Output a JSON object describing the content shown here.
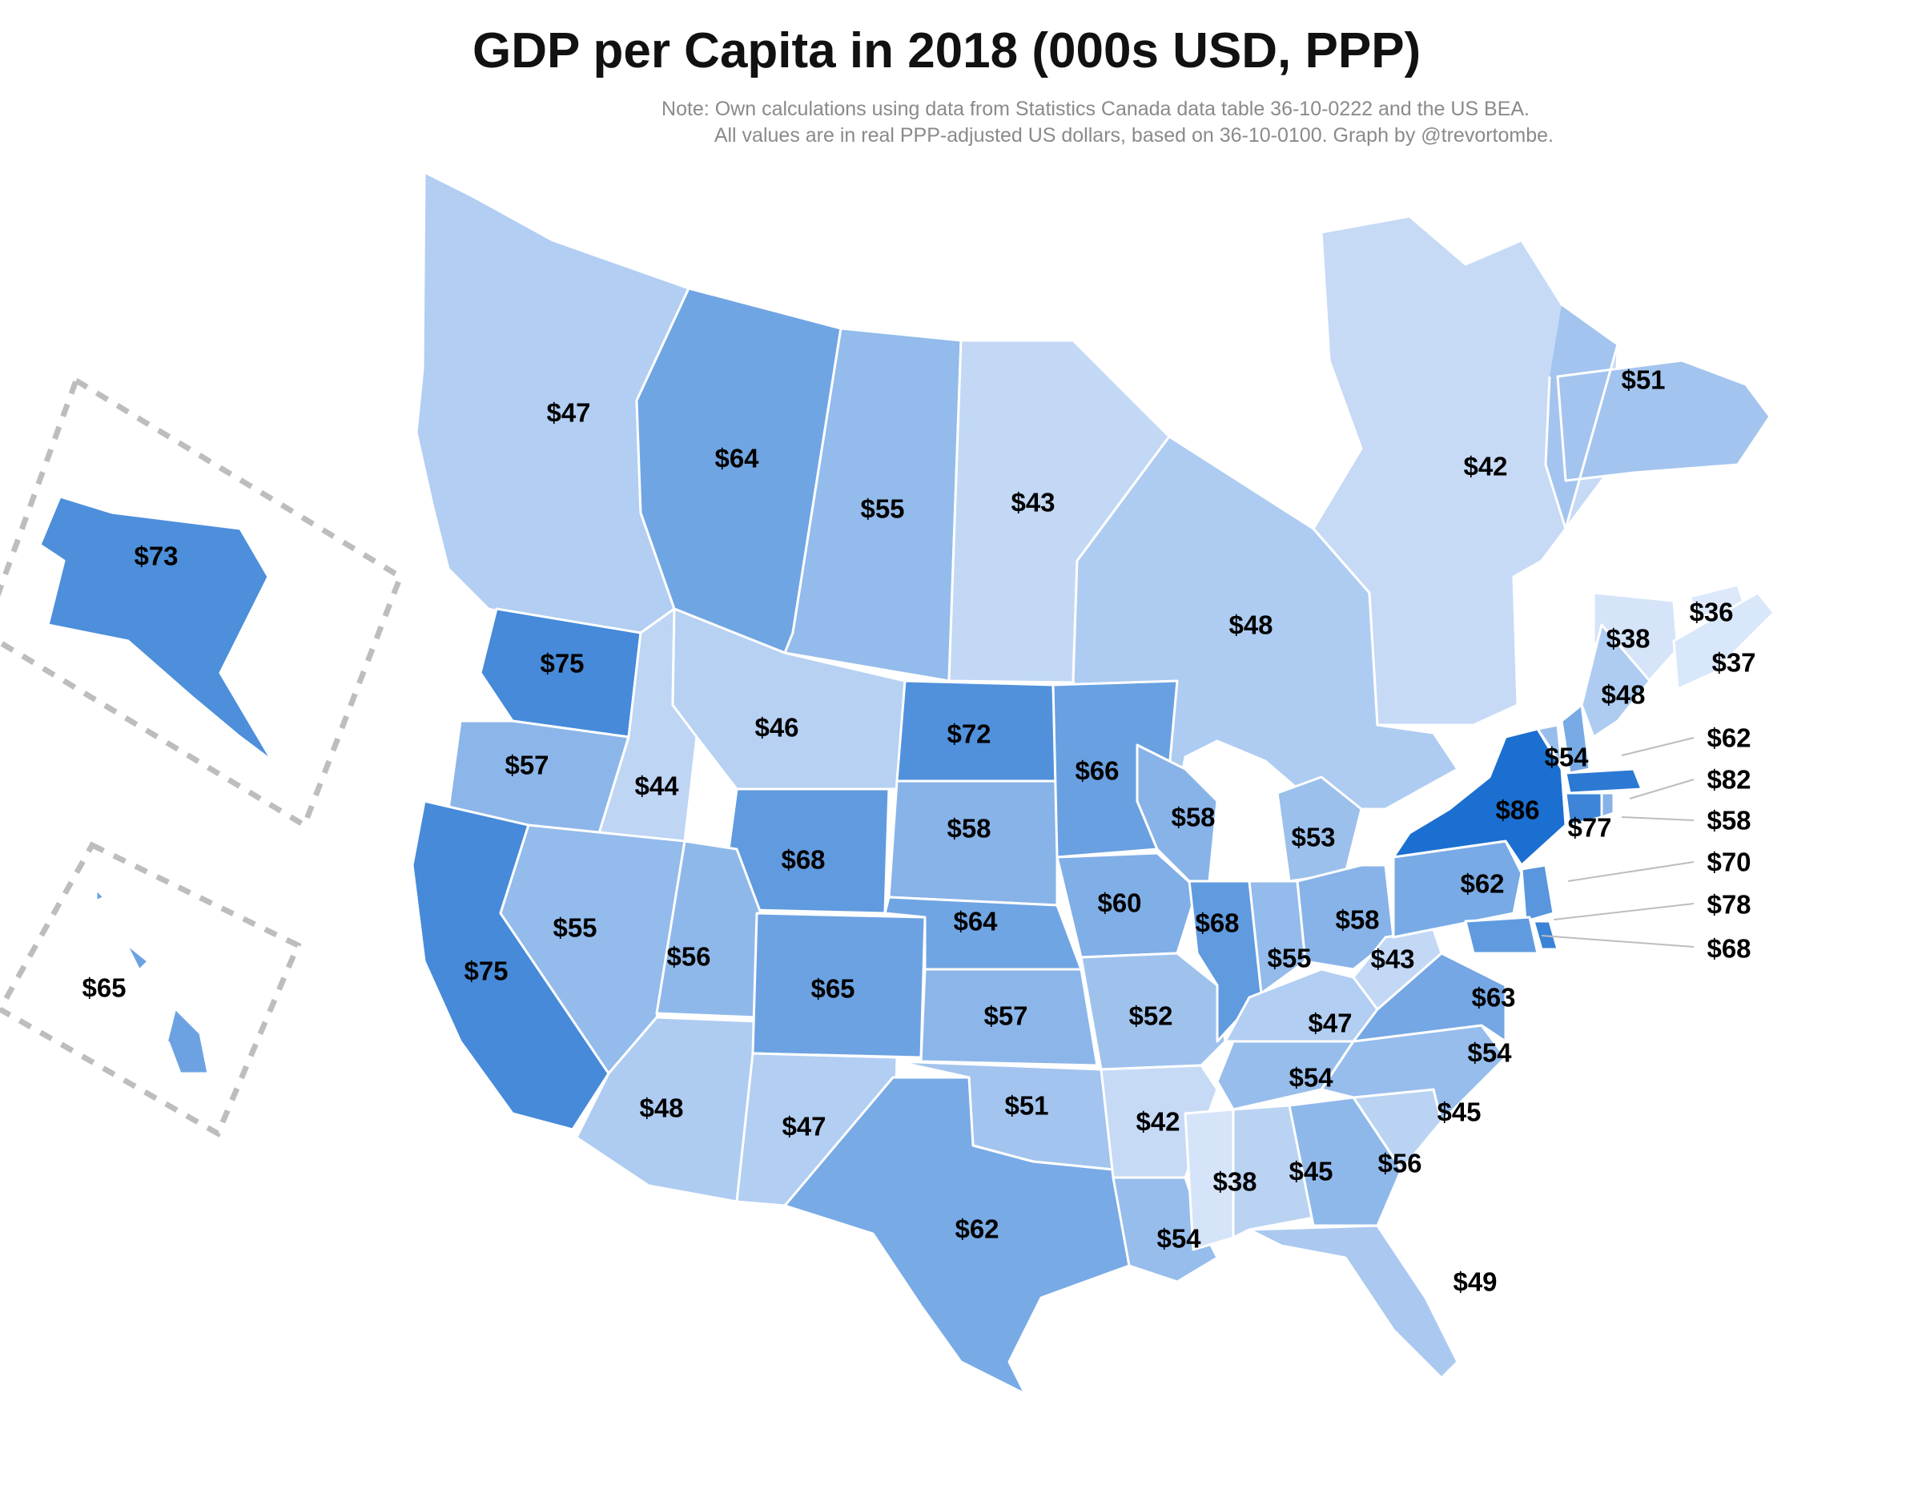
{
  "title": "GDP per Capita in 2018 (000s USD, PPP)",
  "note": {
    "line1": "Note: Own calculations using data from Statistics Canada data table 36-10-0222 and the US BEA.",
    "line2": "All values are in real PPP-adjusted US dollars, based on 36-10-0100. Graph by @trevortombe."
  },
  "colors": {
    "background": "#ffffff",
    "outline": "#ffffff",
    "scale_low": "#dde9fb",
    "scale_high": "#1b6fd0",
    "leader_lines": "#bdbdbd",
    "inset_border": "#bdbdbd"
  },
  "regions": [
    {
      "id": "BC",
      "value": 47,
      "label": "$47"
    },
    {
      "id": "AB",
      "value": 64,
      "label": "$64"
    },
    {
      "id": "SK",
      "value": 55,
      "label": "$55"
    },
    {
      "id": "MB",
      "value": 43,
      "label": "$43"
    },
    {
      "id": "ON",
      "value": 48,
      "label": "$48"
    },
    {
      "id": "QC",
      "value": 42,
      "label": "$42"
    },
    {
      "id": "NL",
      "value": 51,
      "label": "$51"
    },
    {
      "id": "NB",
      "value": 38,
      "label": "$38"
    },
    {
      "id": "PE",
      "value": 36,
      "label": "$36"
    },
    {
      "id": "NS",
      "value": 37,
      "label": "$37"
    },
    {
      "id": "AK",
      "value": 73,
      "label": "$73"
    },
    {
      "id": "HI",
      "value": 65,
      "label": "$65"
    },
    {
      "id": "WA",
      "value": 75,
      "label": "$75"
    },
    {
      "id": "OR",
      "value": 57,
      "label": "$57"
    },
    {
      "id": "CA",
      "value": 75,
      "label": "$75"
    },
    {
      "id": "ID",
      "value": 44,
      "label": "$44"
    },
    {
      "id": "NV",
      "value": 55,
      "label": "$55"
    },
    {
      "id": "MT",
      "value": 46,
      "label": "$46"
    },
    {
      "id": "WY",
      "value": 68,
      "label": "$68"
    },
    {
      "id": "UT",
      "value": 56,
      "label": "$56"
    },
    {
      "id": "AZ",
      "value": 48,
      "label": "$48"
    },
    {
      "id": "CO",
      "value": 65,
      "label": "$65"
    },
    {
      "id": "NM",
      "value": 47,
      "label": "$47"
    },
    {
      "id": "ND",
      "value": 72,
      "label": "$72"
    },
    {
      "id": "SD",
      "value": 58,
      "label": "$58"
    },
    {
      "id": "NE",
      "value": 64,
      "label": "$64"
    },
    {
      "id": "KS",
      "value": 57,
      "label": "$57"
    },
    {
      "id": "OK",
      "value": 51,
      "label": "$51"
    },
    {
      "id": "TX",
      "value": 62,
      "label": "$62"
    },
    {
      "id": "MN",
      "value": 66,
      "label": "$66"
    },
    {
      "id": "IA",
      "value": 60,
      "label": "$60"
    },
    {
      "id": "MO",
      "value": 52,
      "label": "$52"
    },
    {
      "id": "AR",
      "value": 42,
      "label": "$42"
    },
    {
      "id": "LA",
      "value": 54,
      "label": "$54"
    },
    {
      "id": "WI",
      "value": 58,
      "label": "$58"
    },
    {
      "id": "IL",
      "value": 68,
      "label": "$68"
    },
    {
      "id": "MI",
      "value": 53,
      "label": "$53"
    },
    {
      "id": "IN",
      "value": 55,
      "label": "$55"
    },
    {
      "id": "OH",
      "value": 58,
      "label": "$58"
    },
    {
      "id": "KY",
      "value": 47,
      "label": "$47"
    },
    {
      "id": "TN",
      "value": 54,
      "label": "$54"
    },
    {
      "id": "MS",
      "value": 38,
      "label": "$38"
    },
    {
      "id": "AL",
      "value": 45,
      "label": "$45"
    },
    {
      "id": "GA",
      "value": 56,
      "label": "$56"
    },
    {
      "id": "FL",
      "value": 49,
      "label": "$49"
    },
    {
      "id": "SC",
      "value": 45,
      "label": "$45"
    },
    {
      "id": "NC",
      "value": 54,
      "label": "$54"
    },
    {
      "id": "VA",
      "value": 63,
      "label": "$63"
    },
    {
      "id": "WV",
      "value": 43,
      "label": "$43"
    },
    {
      "id": "PA",
      "value": 62,
      "label": "$62"
    },
    {
      "id": "NY",
      "value": 86,
      "label": "$86"
    },
    {
      "id": "VT",
      "value": 54,
      "label": "$54"
    },
    {
      "id": "ME",
      "value": 48,
      "label": "$48"
    },
    {
      "id": "CT",
      "value": 77,
      "label": "$77"
    },
    {
      "id": "NH",
      "value": 62,
      "label": "$62"
    },
    {
      "id": "MA",
      "value": 82,
      "label": "$82"
    },
    {
      "id": "RI",
      "value": 58,
      "label": "$58"
    },
    {
      "id": "NJ",
      "value": 70,
      "label": "$70"
    },
    {
      "id": "DE",
      "value": 78,
      "label": "$78"
    },
    {
      "id": "MD",
      "value": 68,
      "label": "$68"
    }
  ]
}
